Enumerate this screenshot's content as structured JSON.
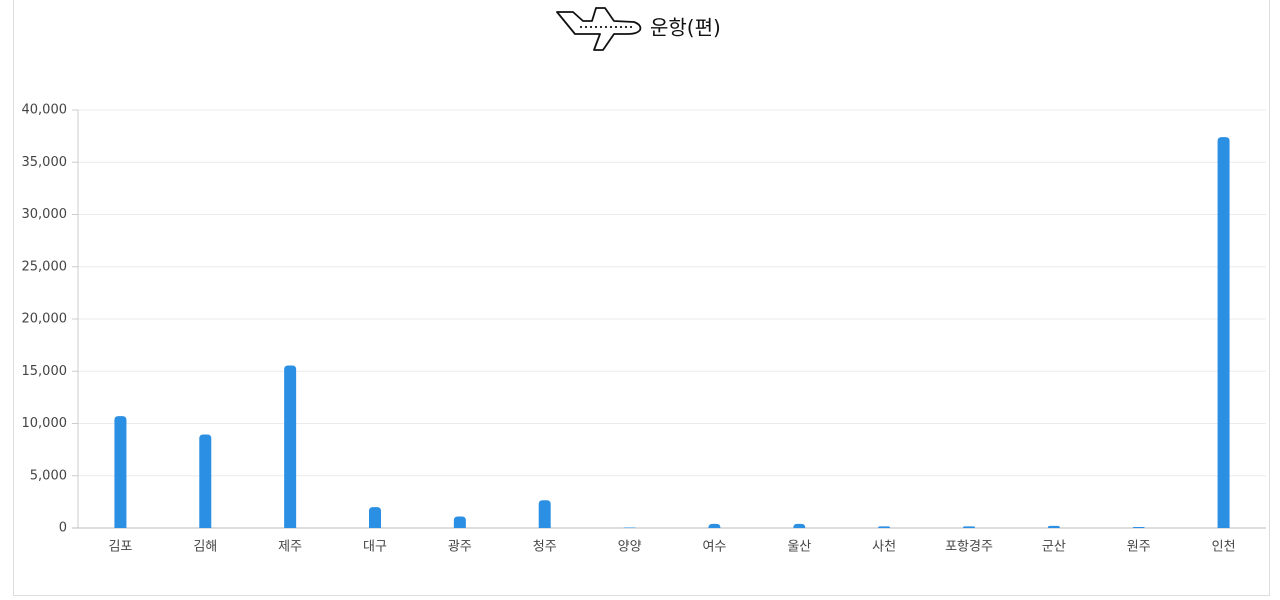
{
  "chart_data": {
    "type": "bar",
    "title": "운항(편)",
    "categories": [
      "김포",
      "김해",
      "제주",
      "대구",
      "광주",
      "청주",
      "양양",
      "여수",
      "울산",
      "사천",
      "포항경주",
      "군산",
      "원주",
      "인천"
    ],
    "values": [
      10700,
      8950,
      15550,
      2000,
      1100,
      2650,
      50,
      400,
      400,
      150,
      150,
      200,
      100,
      37400
    ],
    "color": "#2b8fe3",
    "ylim": [
      0,
      40000
    ],
    "yticks": [
      0,
      {
        "value": 5000,
        "label": "5,000"
      },
      {
        "value": 10000,
        "label": "10,000"
      },
      {
        "value": 15000,
        "label": "15,000"
      },
      {
        "value": 20000,
        "label": "20,000"
      },
      {
        "value": 25000,
        "label": "25,000"
      },
      {
        "value": 30000,
        "label": "30,000"
      },
      {
        "value": 35000,
        "label": "35,000"
      },
      {
        "value": 40000,
        "label": "40,000"
      }
    ],
    "grid": true
  }
}
